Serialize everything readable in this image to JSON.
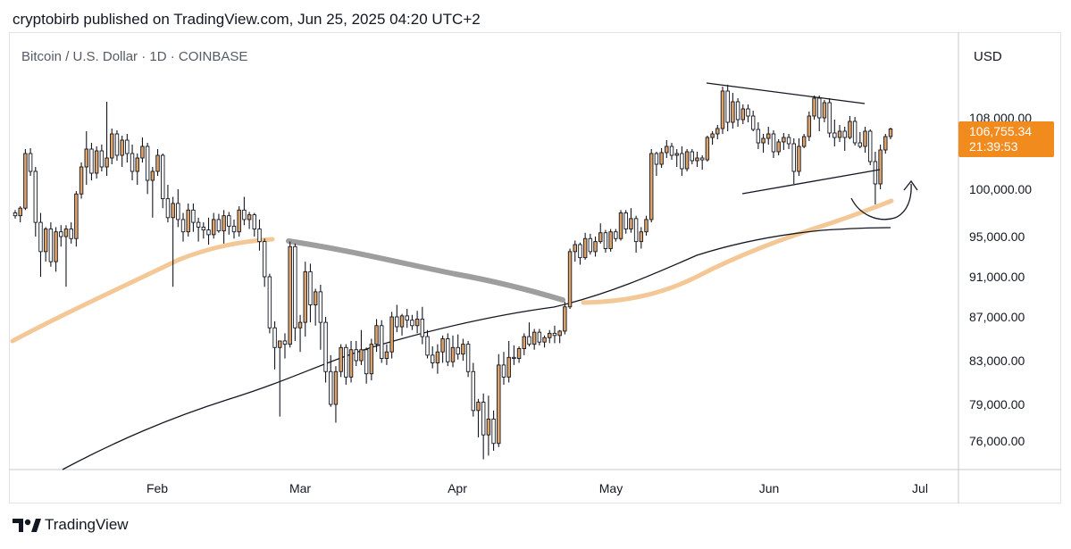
{
  "header": {
    "text": "cryptobirb published on TradingView.com, Jun 25, 2025 04:20 UTC+2"
  },
  "footer": {
    "brand": "TradingView"
  },
  "chart_data": {
    "type": "candlestick",
    "title": "Bitcoin / U.S. Dollar · 1D · COINBASE",
    "currency": "USD",
    "price_ticks": [
      "108,000.00",
      "100,000.00",
      "95,000.00",
      "91,000.00",
      "87,000.00",
      "83,000.00",
      "79,000.00",
      "76,000.00"
    ],
    "month_ticks": [
      "Feb",
      "Mar",
      "Apr",
      "May",
      "Jun",
      "Jul"
    ],
    "last_price": "106,755.34",
    "countdown": "21:39:53",
    "colors": {
      "up": "#e0a367",
      "down": "#131722",
      "last_price_tag": "#f28b1e",
      "ma_short": "#f3c896",
      "ma_gray": "#9e9e9e",
      "ma_long": "#131722"
    },
    "candles": [
      [
        97500,
        97800,
        96900,
        97200
      ],
      [
        97200,
        98200,
        96500,
        98000
      ],
      [
        98000,
        104500,
        97800,
        104000
      ],
      [
        104000,
        104600,
        101500,
        102000
      ],
      [
        102000,
        102500,
        95000,
        96500
      ],
      [
        96500,
        97500,
        91000,
        93500
      ],
      [
        93500,
        96000,
        92500,
        95800
      ],
      [
        95800,
        96500,
        92000,
        92500
      ],
      [
        92500,
        96000,
        91500,
        95500
      ],
      [
        95500,
        96200,
        94000,
        95000
      ],
      [
        95000,
        96200,
        90000,
        95800
      ],
      [
        95800,
        96500,
        94300,
        94800
      ],
      [
        94800,
        99800,
        94000,
        99500
      ],
      [
        99500,
        103000,
        99000,
        102500
      ],
      [
        102500,
        106500,
        100500,
        104500
      ],
      [
        104500,
        105200,
        101000,
        101800
      ],
      [
        101800,
        104800,
        101200,
        104300
      ],
      [
        104300,
        105000,
        102000,
        102500
      ],
      [
        102500,
        109800,
        101500,
        103500
      ],
      [
        103500,
        106800,
        102800,
        106200
      ],
      [
        106200,
        106600,
        103200,
        103800
      ],
      [
        103800,
        106000,
        102500,
        105500
      ],
      [
        105500,
        106200,
        103000,
        104000
      ],
      [
        104000,
        105000,
        101000,
        102000
      ],
      [
        102000,
        104000,
        100500,
        103500
      ],
      [
        103500,
        105800,
        103000,
        104800
      ],
      [
        104800,
        105200,
        99500,
        101000
      ],
      [
        101000,
        102500,
        97000,
        102000
      ],
      [
        102000,
        104500,
        101500,
        103800
      ],
      [
        103800,
        104000,
        98000,
        99000
      ],
      [
        99000,
        100500,
        96500,
        97000
      ],
      [
        97000,
        99200,
        90000,
        98500
      ],
      [
        98500,
        100000,
        96000,
        96800
      ],
      [
        96800,
        97500,
        94500,
        95500
      ],
      [
        95500,
        98500,
        95000,
        97800
      ],
      [
        97800,
        98500,
        95500,
        96500
      ],
      [
        96500,
        97000,
        94500,
        96000
      ],
      [
        96000,
        96500,
        94800,
        95700
      ],
      [
        95700,
        97000,
        94200,
        95200
      ],
      [
        95200,
        97500,
        94800,
        96800
      ],
      [
        96800,
        97400,
        95400,
        95600
      ],
      [
        95600,
        97800,
        94300,
        97200
      ],
      [
        97200,
        97600,
        95200,
        96100
      ],
      [
        96100,
        96800,
        94800,
        95500
      ],
      [
        95500,
        98200,
        95000,
        97800
      ],
      [
        97800,
        99200,
        96200,
        96800
      ],
      [
        96800,
        97600,
        95800,
        97300
      ],
      [
        97300,
        97500,
        95000,
        95800
      ],
      [
        95800,
        96800,
        93600,
        94500
      ],
      [
        94500,
        94800,
        90000,
        91000
      ],
      [
        91000,
        91300,
        85500,
        86000
      ],
      [
        86000,
        86600,
        82200,
        84200
      ],
      [
        84200,
        84600,
        78000,
        84800
      ],
      [
        84800,
        85500,
        83200,
        84500
      ],
      [
        84500,
        94500,
        84200,
        94000
      ],
      [
        94000,
        94300,
        84800,
        86000
      ],
      [
        86000,
        87200,
        83800,
        86500
      ],
      [
        86500,
        92500,
        85200,
        91500
      ],
      [
        91500,
        92300,
        86500,
        88200
      ],
      [
        88200,
        89800,
        86200,
        89500
      ],
      [
        89500,
        90200,
        84000,
        86500
      ],
      [
        86500,
        87000,
        81000,
        82000
      ],
      [
        82000,
        83500,
        78800,
        79000
      ],
      [
        79000,
        82500,
        77500,
        82000
      ],
      [
        82000,
        84500,
        81500,
        84200
      ],
      [
        84200,
        84500,
        80800,
        81500
      ],
      [
        81500,
        84800,
        81000,
        84000
      ],
      [
        84000,
        84800,
        82500,
        83000
      ],
      [
        83000,
        85800,
        82600,
        84000
      ],
      [
        84000,
        84200,
        80900,
        81800
      ],
      [
        81800,
        85000,
        81200,
        84500
      ],
      [
        84500,
        86800,
        83800,
        86200
      ],
      [
        86200,
        86700,
        82800,
        83200
      ],
      [
        83200,
        84500,
        82600,
        83800
      ],
      [
        83800,
        87500,
        83200,
        87000
      ],
      [
        87000,
        88200,
        85600,
        86100
      ],
      [
        86100,
        87300,
        85300,
        87100
      ],
      [
        87100,
        87800,
        86000,
        86700
      ],
      [
        86700,
        87200,
        85800,
        86200
      ],
      [
        86200,
        87600,
        85500,
        86800
      ],
      [
        86800,
        88000,
        84500,
        85200
      ],
      [
        85200,
        85800,
        83200,
        83500
      ],
      [
        83500,
        84300,
        82300,
        82800
      ],
      [
        82800,
        84500,
        81800,
        83800
      ],
      [
        83800,
        85300,
        82800,
        85000
      ],
      [
        85000,
        85500,
        82500,
        82900
      ],
      [
        82900,
        85300,
        82400,
        84200
      ],
      [
        84200,
        85400,
        83100,
        83600
      ],
      [
        83600,
        85000,
        83000,
        84500
      ],
      [
        84500,
        84800,
        81500,
        82000
      ],
      [
        82000,
        82800,
        78000,
        78500
      ],
      [
        78500,
        79500,
        76300,
        79200
      ],
      [
        79200,
        80000,
        74500,
        76500
      ],
      [
        76500,
        79800,
        74800,
        77800
      ],
      [
        77800,
        78500,
        75200,
        75800
      ],
      [
        75800,
        83600,
        75500,
        82600
      ],
      [
        82600,
        83800,
        80800,
        81500
      ],
      [
        81500,
        84800,
        81000,
        83300
      ],
      [
        83300,
        84400,
        82600,
        83200
      ],
      [
        83200,
        84300,
        82800,
        84100
      ],
      [
        84100,
        85500,
        83500,
        85200
      ],
      [
        85200,
        86500,
        84300,
        84500
      ],
      [
        84500,
        85900,
        84000,
        85600
      ],
      [
        85600,
        85900,
        84400,
        84700
      ],
      [
        84700,
        85300,
        84200,
        85100
      ],
      [
        85100,
        85800,
        84600,
        85500
      ],
      [
        85500,
        86200,
        84600,
        85300
      ],
      [
        85300,
        85800,
        84600,
        85700
      ],
      [
        85700,
        88500,
        85400,
        88000
      ],
      [
        88000,
        93800,
        87800,
        93500
      ],
      [
        93500,
        94600,
        92500,
        94200
      ],
      [
        94200,
        94400,
        92200,
        92900
      ],
      [
        92900,
        95400,
        92700,
        94800
      ],
      [
        94800,
        95300,
        93200,
        93500
      ],
      [
        93500,
        95000,
        93000,
        94500
      ],
      [
        94500,
        96400,
        94300,
        95400
      ],
      [
        95400,
        95700,
        93400,
        93800
      ],
      [
        93800,
        95800,
        93500,
        95500
      ],
      [
        95500,
        95800,
        94500,
        94800
      ],
      [
        94800,
        97800,
        94600,
        97500
      ],
      [
        97500,
        97800,
        95300,
        95800
      ],
      [
        95800,
        98000,
        95400,
        96900
      ],
      [
        96900,
        97200,
        93400,
        94500
      ],
      [
        94500,
        96000,
        93800,
        95500
      ],
      [
        95500,
        97200,
        95100,
        96800
      ],
      [
        96800,
        104500,
        96500,
        104000
      ],
      [
        104000,
        104200,
        101500,
        102800
      ],
      [
        102800,
        104600,
        102400,
        104100
      ],
      [
        104100,
        105500,
        103500,
        104800
      ],
      [
        104800,
        105200,
        103300,
        103800
      ],
      [
        103800,
        104500,
        102500,
        104000
      ],
      [
        104000,
        104800,
        101500,
        102300
      ],
      [
        102300,
        104500,
        102000,
        104200
      ],
      [
        104200,
        104500,
        102800,
        103200
      ],
      [
        103200,
        104200,
        102500,
        103500
      ],
      [
        103500,
        103800,
        102200,
        103300
      ],
      [
        103300,
        106000,
        103100,
        105800
      ],
      [
        105800,
        106500,
        105000,
        106200
      ],
      [
        106200,
        107200,
        105600,
        106800
      ],
      [
        106800,
        111500,
        106200,
        111000
      ],
      [
        111000,
        111700,
        106500,
        107500
      ],
      [
        107500,
        110800,
        106800,
        109800
      ],
      [
        109800,
        110200,
        107000,
        107800
      ],
      [
        107800,
        109500,
        107300,
        109000
      ],
      [
        109000,
        109500,
        107500,
        108200
      ],
      [
        108200,
        108800,
        106500,
        106700
      ],
      [
        106700,
        107500,
        104500,
        105200
      ],
      [
        105200,
        106200,
        104100,
        105700
      ],
      [
        105700,
        107000,
        105000,
        106200
      ],
      [
        106200,
        106600,
        103500,
        104200
      ],
      [
        104200,
        105600,
        103800,
        105300
      ],
      [
        105300,
        106300,
        104400,
        105800
      ],
      [
        105800,
        106200,
        104500,
        105100
      ],
      [
        105100,
        105700,
        100600,
        102000
      ],
      [
        102000,
        105700,
        101500,
        104800
      ],
      [
        104800,
        106200,
        104600,
        105900
      ],
      [
        105900,
        108700,
        105400,
        108200
      ],
      [
        108200,
        110500,
        107800,
        110200
      ],
      [
        110200,
        110500,
        106500,
        108000
      ],
      [
        108000,
        110000,
        107500,
        109700
      ],
      [
        109700,
        110200,
        105800,
        106300
      ],
      [
        106300,
        107800,
        104800,
        105800
      ],
      [
        105800,
        107200,
        105300,
        106500
      ],
      [
        106500,
        107000,
        104300,
        105800
      ],
      [
        105800,
        108200,
        105600,
        107600
      ],
      [
        107600,
        108100,
        104900,
        105200
      ],
      [
        105200,
        106400,
        104600,
        104800
      ],
      [
        104800,
        107000,
        104100,
        106500
      ],
      [
        106500,
        106700,
        102700,
        103100
      ],
      [
        103100,
        104200,
        98400,
        100600
      ],
      [
        100600,
        105000,
        100000,
        104400
      ],
      [
        104400,
        106200,
        104000,
        105900
      ],
      [
        105900,
        106900,
        105600,
        106755
      ]
    ]
  }
}
